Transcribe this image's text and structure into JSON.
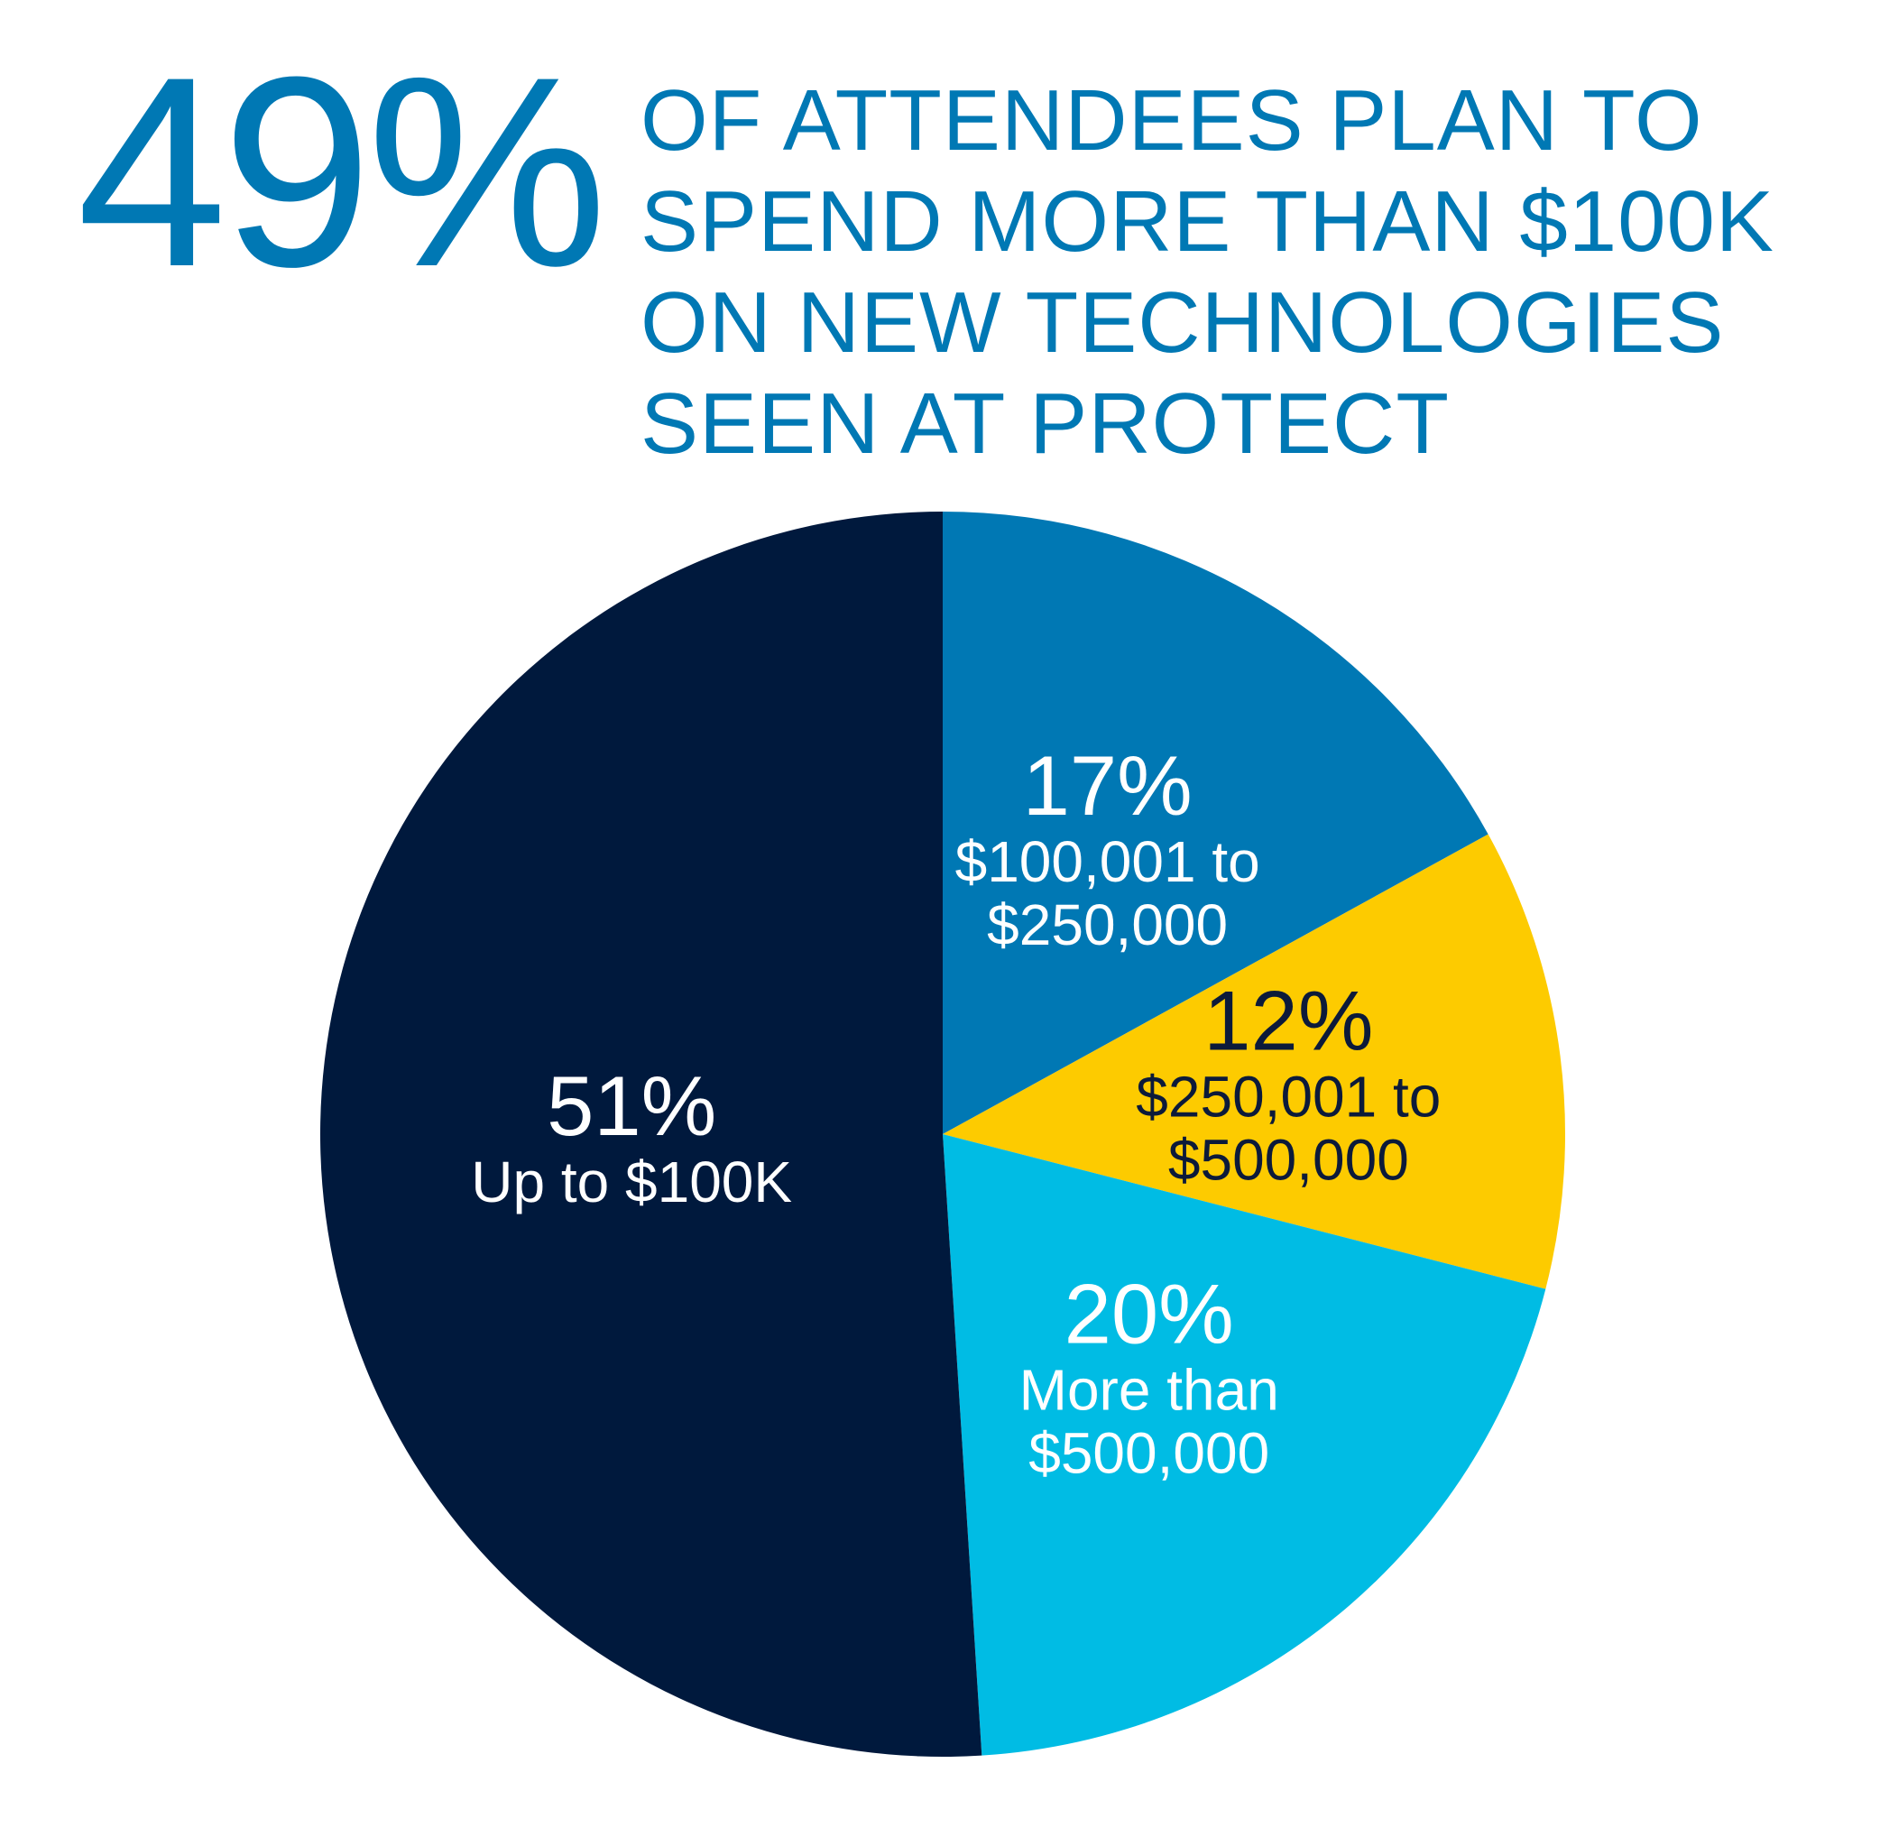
{
  "headline": {
    "stat": "49%",
    "lines": [
      "OF ATTENDEES PLAN TO",
      "SPEND MORE THAN $100K",
      "ON NEW TECHNOLOGIES",
      "SEEN AT PROTECT"
    ]
  },
  "chart_data": {
    "type": "pie",
    "start_angle_deg": 0,
    "direction": "clockwise",
    "slices": [
      {
        "value": 17,
        "pct_label": "17%",
        "label_lines": [
          "$100,001 to",
          "$250,000"
        ],
        "color": "#0078B4",
        "text_color": "#ffffff"
      },
      {
        "value": 12,
        "pct_label": "12%",
        "label_lines": [
          "$250,001 to",
          "$500,000"
        ],
        "color": "#FDCB00",
        "text_color": "#0C1A3A"
      },
      {
        "value": 20,
        "pct_label": "20%",
        "label_lines": [
          "More than",
          "$500,000"
        ],
        "color": "#00BCE4",
        "text_color": "#ffffff"
      },
      {
        "value": 51,
        "pct_label": "51%",
        "label_lines": [
          "Up to $100K"
        ],
        "color": "#00193D",
        "text_color": "#ffffff"
      }
    ]
  }
}
